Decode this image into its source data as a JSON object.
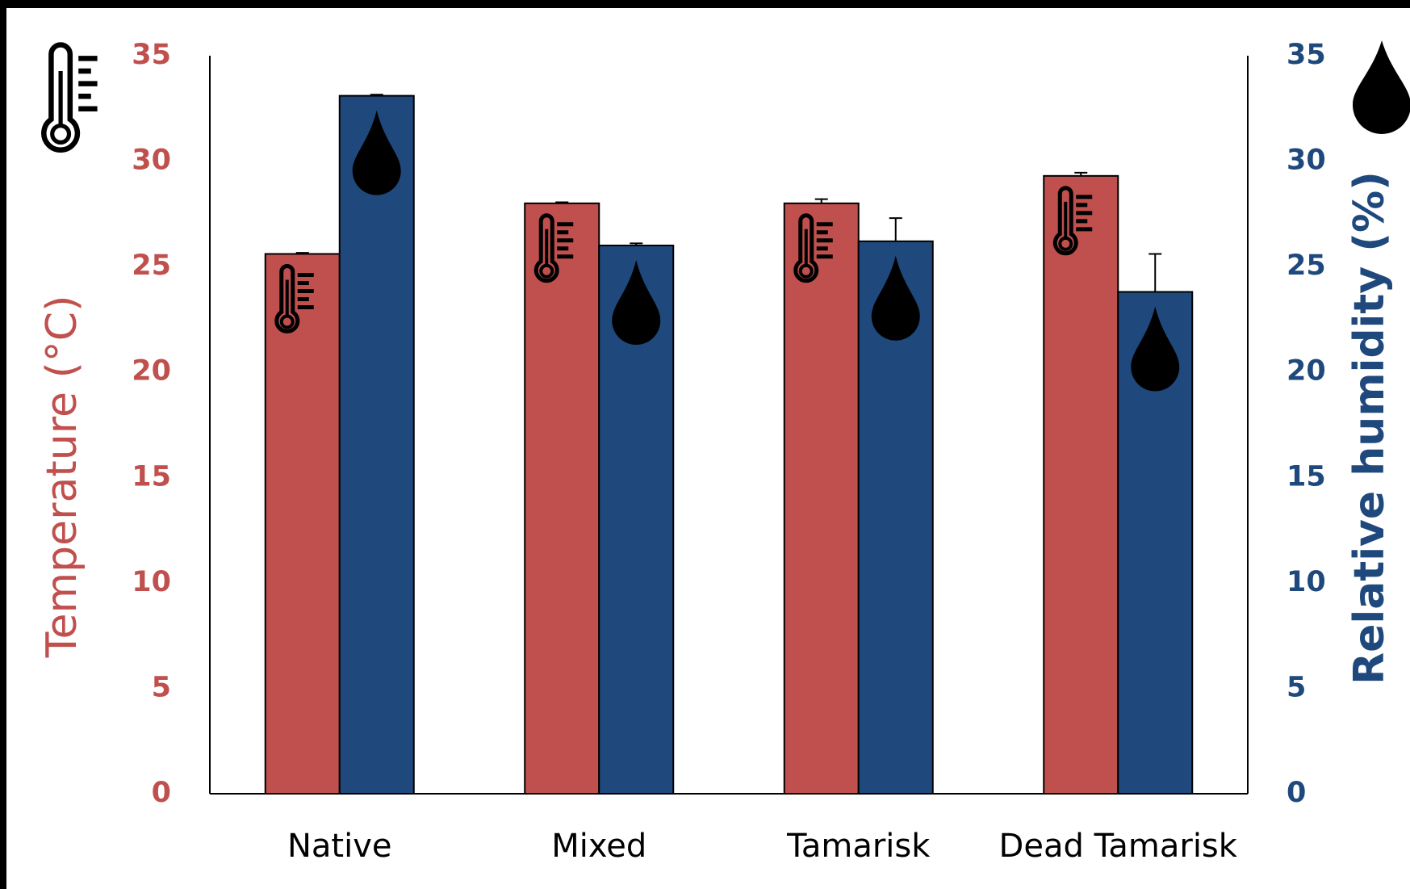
{
  "chart_data": {
    "type": "bar",
    "categories": [
      "Native",
      "Mixed",
      "Tamarisk",
      "Dead Tamarisk"
    ],
    "series": [
      {
        "name": "Temperature (°C)",
        "color": "#c0504d",
        "values": [
          25.6,
          28.0,
          28.0,
          29.3
        ],
        "errors": [
          0.05,
          0.05,
          0.2,
          0.15
        ]
      },
      {
        "name": "Relative humidity (%)",
        "color": "#1f497d",
        "axis": "y2",
        "values": [
          33.1,
          26.0,
          26.2,
          23.8
        ],
        "errors": [
          0.05,
          0.1,
          1.1,
          1.8
        ]
      }
    ],
    "ylabel": "Temperature (°C)",
    "y2label": "Relative humidity (%)",
    "ylim": [
      0,
      35
    ],
    "yticks": [
      0,
      5,
      10,
      15,
      20,
      25,
      30,
      35
    ],
    "y2lim": [
      0,
      35
    ],
    "y2ticks": [
      0,
      5,
      10,
      15,
      20,
      25,
      30,
      35
    ]
  }
}
